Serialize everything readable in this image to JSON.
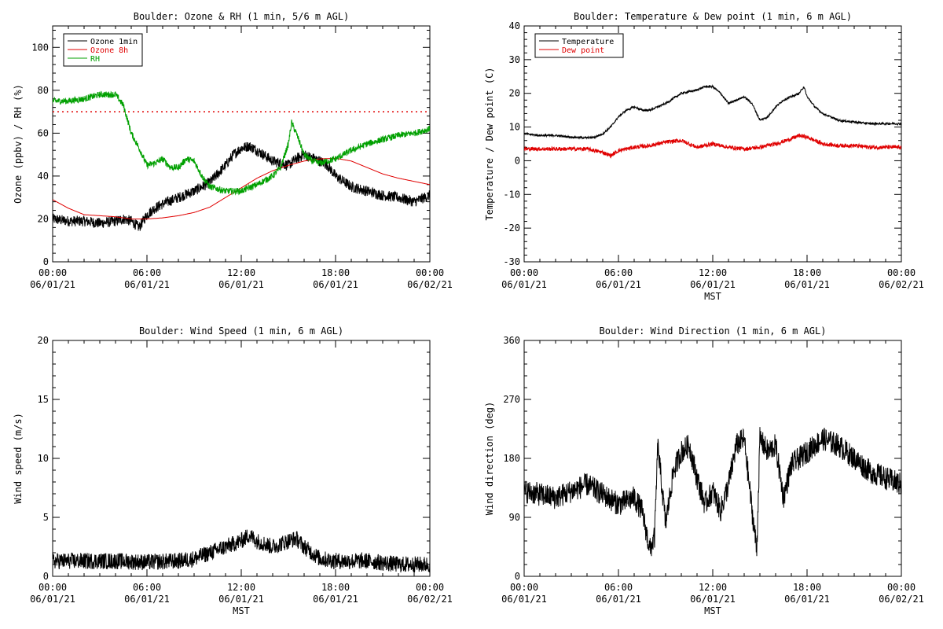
{
  "chart_data": [
    {
      "type": "line",
      "title": "Boulder: Ozone & RH (1 min, 5/6 m AGL)",
      "ylabel": "Ozone (ppbv) / RH (%)",
      "xlabel": "",
      "xlim": [
        0,
        24
      ],
      "ylim": [
        0,
        110
      ],
      "yticks": [
        0,
        20,
        40,
        60,
        80,
        100
      ],
      "xtick_labels": [
        [
          "00:00",
          "06/01/21"
        ],
        [
          "06:00",
          "06/01/21"
        ],
        [
          "12:00",
          "06/01/21"
        ],
        [
          "18:00",
          "06/01/21"
        ],
        [
          "00:00",
          "06/02/21"
        ]
      ],
      "legend": {
        "placement": "top-left",
        "boxed": true
      },
      "reference_line": {
        "y": 70,
        "color": "#e00000",
        "style": "dotted"
      },
      "series": [
        {
          "name": "Ozone 1min",
          "color": "#000000",
          "noise": 2.5,
          "x": [
            0,
            1,
            2,
            3,
            4,
            4.5,
            5,
            5.5,
            6,
            6.5,
            7,
            8,
            9,
            10,
            11,
            11.5,
            12,
            12.5,
            13,
            14,
            15,
            15.5,
            16,
            17,
            17.5,
            18,
            19,
            20,
            21,
            22,
            22.5,
            23,
            24
          ],
          "y": [
            20,
            19,
            19,
            18,
            19,
            20,
            19,
            16,
            22,
            25,
            27,
            30,
            33,
            37,
            45,
            50,
            53,
            54,
            52,
            47,
            45,
            48,
            50,
            47,
            45,
            40,
            35,
            33,
            31,
            30,
            29,
            28,
            31
          ]
        },
        {
          "name": "Ozone 8h",
          "color": "#e00000",
          "noise": 0,
          "x": [
            0,
            1,
            2,
            3,
            4,
            5,
            6,
            7,
            8,
            9,
            10,
            11,
            12,
            13,
            14,
            15,
            16,
            17,
            18,
            19,
            20,
            21,
            22,
            23,
            24
          ],
          "y": [
            29,
            25,
            22,
            21.5,
            21,
            20,
            20,
            20.5,
            21.5,
            23,
            25.5,
            30,
            34.5,
            39,
            42.5,
            45,
            47,
            48,
            48.3,
            47,
            44,
            41,
            39,
            37.5,
            36
          ]
        },
        {
          "name": "RH",
          "color": "#00a000",
          "noise": 1.5,
          "x": [
            0,
            1,
            2,
            3,
            4,
            4.5,
            5,
            5.5,
            6,
            6.5,
            7,
            7.5,
            8,
            8.5,
            9,
            9.5,
            10,
            11,
            12,
            13,
            14,
            14.5,
            15,
            15.2,
            15.5,
            16,
            16.5,
            17,
            17.5,
            18,
            19,
            20,
            21,
            22,
            23,
            23.5,
            24
          ],
          "y": [
            75,
            75,
            76,
            78,
            78,
            73,
            60,
            53,
            45,
            46,
            48,
            44,
            44,
            48,
            47,
            40,
            35,
            33,
            33,
            36,
            40,
            44,
            55,
            65,
            60,
            50,
            47,
            46,
            47,
            48,
            52,
            55,
            57,
            59,
            60,
            61,
            62
          ]
        }
      ]
    },
    {
      "type": "line",
      "title": "Boulder: Temperature & Dew point (1 min, 6 m AGL)",
      "ylabel": "Temperature / Dew point (C)",
      "xlabel": "MST",
      "xlim": [
        0,
        24
      ],
      "ylim": [
        -30,
        40
      ],
      "yticks": [
        -30,
        -20,
        -10,
        0,
        10,
        20,
        30,
        40
      ],
      "xtick_labels": [
        [
          "00:00",
          "06/01/21"
        ],
        [
          "06:00",
          "06/01/21"
        ],
        [
          "12:00",
          "06/01/21"
        ],
        [
          "18:00",
          "06/01/21"
        ],
        [
          "00:00",
          "06/02/21"
        ]
      ],
      "legend": {
        "placement": "top-left",
        "boxed": true
      },
      "series": [
        {
          "name": "Temperature",
          "color": "#000000",
          "noise": 0.3,
          "x": [
            0,
            1,
            2,
            3,
            4,
            4.5,
            5,
            5.5,
            6,
            6.5,
            7,
            7.5,
            8,
            9,
            10,
            11,
            11.5,
            12,
            12.5,
            13,
            13.5,
            14,
            14.5,
            15,
            15.5,
            16,
            16.5,
            17,
            17.5,
            17.8,
            18,
            18.5,
            19,
            20,
            21,
            22,
            23,
            24
          ],
          "y": [
            8,
            7.5,
            7.5,
            7,
            6.8,
            7,
            8,
            10,
            13,
            15,
            16,
            15,
            15,
            17,
            20,
            21,
            22,
            22,
            20,
            17,
            18,
            19,
            17,
            12,
            13,
            16,
            18,
            19,
            20,
            22,
            19,
            16,
            14,
            12,
            11.5,
            11,
            11,
            11
          ]
        },
        {
          "name": "Dew point",
          "color": "#e00000",
          "noise": 0.6,
          "x": [
            0,
            1,
            2,
            3,
            4,
            5,
            5.5,
            6,
            7,
            8,
            9,
            10,
            11,
            12,
            13,
            14,
            15,
            16,
            17,
            17.5,
            18,
            19,
            20,
            21,
            22,
            23,
            24
          ],
          "y": [
            3.5,
            3.5,
            3.5,
            3.5,
            3.5,
            2.5,
            1.5,
            3,
            4,
            4.5,
            5.5,
            6,
            4,
            5,
            4,
            3.5,
            4,
            5,
            6.5,
            7.5,
            7,
            5,
            4.5,
            4.5,
            4,
            4,
            4
          ]
        }
      ]
    },
    {
      "type": "line",
      "title": "Boulder: Wind Speed (1 min, 6 m AGL)",
      "ylabel": "Wind speed (m/s)",
      "xlabel": "MST",
      "xlim": [
        0,
        24
      ],
      "ylim": [
        0,
        20
      ],
      "yticks": [
        0,
        5,
        10,
        15,
        20
      ],
      "xtick_labels": [
        [
          "00:00",
          "06/01/21"
        ],
        [
          "06:00",
          "06/01/21"
        ],
        [
          "12:00",
          "06/01/21"
        ],
        [
          "18:00",
          "06/01/21"
        ],
        [
          "00:00",
          "06/02/21"
        ]
      ],
      "series": [
        {
          "color": "#000000",
          "noise": 0.7,
          "x": [
            0,
            2,
            4,
            6,
            8,
            9,
            10,
            11,
            12,
            12.5,
            13,
            14,
            15,
            15.5,
            16,
            17,
            18,
            20,
            22,
            24
          ],
          "y": [
            1.3,
            1.3,
            1.3,
            1.2,
            1.3,
            1.5,
            2,
            2.5,
            3,
            3.5,
            3,
            2.5,
            3,
            3.2,
            2.5,
            1.5,
            1.3,
            1.3,
            1,
            1
          ]
        }
      ]
    },
    {
      "type": "line",
      "title": "Boulder: Wind Direction (1 min, 6 m AGL)",
      "ylabel": "Wind direction (deg)",
      "xlabel": "MST",
      "xlim": [
        0,
        24
      ],
      "ylim": [
        0,
        360
      ],
      "yticks": [
        0,
        90,
        180,
        270,
        360
      ],
      "xtick_labels": [
        [
          "00:00",
          "06/01/21"
        ],
        [
          "06:00",
          "06/01/21"
        ],
        [
          "12:00",
          "06/01/21"
        ],
        [
          "18:00",
          "06/01/21"
        ],
        [
          "00:00",
          "06/02/21"
        ]
      ],
      "series": [
        {
          "color": "#000000",
          "noise": 18,
          "x": [
            0,
            1,
            2,
            3,
            4,
            5,
            6,
            7,
            7.5,
            8,
            8.3,
            8.5,
            9,
            9.5,
            10,
            10.5,
            11,
            11.5,
            12,
            12.5,
            13,
            13.5,
            14,
            14.5,
            14.8,
            15,
            15.5,
            16,
            16.5,
            17,
            18,
            19,
            20,
            21,
            22,
            23,
            24
          ],
          "y": [
            130,
            125,
            120,
            130,
            140,
            125,
            110,
            120,
            100,
            40,
            60,
            200,
            80,
            160,
            190,
            200,
            150,
            110,
            130,
            100,
            140,
            200,
            210,
            100,
            40,
            210,
            190,
            200,
            120,
            170,
            190,
            210,
            200,
            180,
            160,
            150,
            140
          ]
        }
      ]
    }
  ]
}
